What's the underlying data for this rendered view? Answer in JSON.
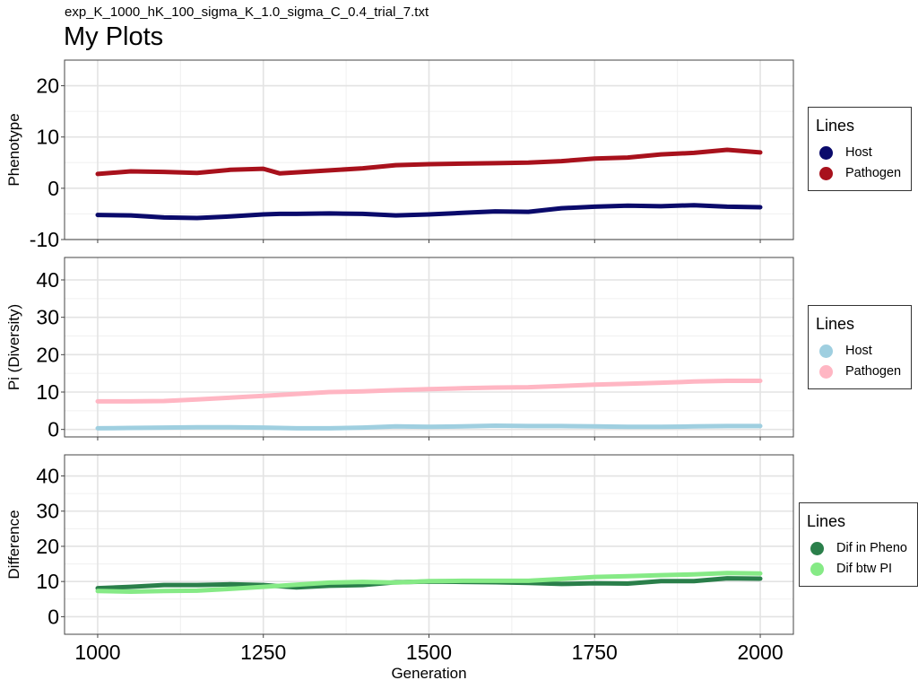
{
  "subtitle": "exp_K_1000_hK_100_sigma_K_1.0_sigma_C_0.4_trial_7.txt",
  "title": "My Plots",
  "colors": {
    "host_pheno": "#0A0A6B",
    "pathogen_pheno": "#A8111C",
    "host_pi": "#9FCFE0",
    "pathogen_pi": "#FFB6C3",
    "dif_pheno": "#2A7F4A",
    "dif_pi": "#86EA86"
  },
  "chart_data": [
    {
      "type": "line",
      "ylabel": "Phenotype",
      "xlabel": "",
      "xlim": [
        950,
        2050
      ],
      "ylim": [
        -10,
        25
      ],
      "yticks": [
        -10,
        0,
        10,
        20
      ],
      "grid": true,
      "legend": {
        "title": "Lines",
        "position": "right"
      },
      "x": [
        1000,
        1050,
        1100,
        1150,
        1200,
        1250,
        1275,
        1300,
        1350,
        1400,
        1450,
        1500,
        1550,
        1600,
        1650,
        1700,
        1750,
        1800,
        1850,
        1900,
        1950,
        2000
      ],
      "series": [
        {
          "name": "Host",
          "color": "host_pheno",
          "values": [
            -5.2,
            -5.3,
            -5.7,
            -5.8,
            -5.5,
            -5.1,
            -5.0,
            -5.0,
            -4.9,
            -5.0,
            -5.3,
            -5.1,
            -4.8,
            -4.5,
            -4.6,
            -3.9,
            -3.6,
            -3.4,
            -3.5,
            -3.3,
            -3.6,
            -3.7
          ]
        },
        {
          "name": "Pathogen",
          "color": "pathogen_pheno",
          "values": [
            2.8,
            3.3,
            3.2,
            3.0,
            3.6,
            3.8,
            2.9,
            3.1,
            3.5,
            3.9,
            4.5,
            4.7,
            4.8,
            4.9,
            5.0,
            5.3,
            5.8,
            6.0,
            6.6,
            6.9,
            7.5,
            7.0
          ]
        }
      ]
    },
    {
      "type": "line",
      "ylabel": "Pi (Diversity)",
      "xlabel": "",
      "xlim": [
        950,
        2050
      ],
      "ylim": [
        -2,
        46
      ],
      "yticks": [
        0,
        10,
        20,
        30,
        40
      ],
      "grid": true,
      "legend": {
        "title": "Lines",
        "position": "right"
      },
      "x": [
        1000,
        1050,
        1100,
        1150,
        1200,
        1250,
        1300,
        1350,
        1400,
        1450,
        1500,
        1550,
        1600,
        1650,
        1700,
        1750,
        1800,
        1850,
        1900,
        1950,
        2000
      ],
      "series": [
        {
          "name": "Host",
          "color": "host_pi",
          "values": [
            0.3,
            0.4,
            0.5,
            0.6,
            0.6,
            0.5,
            0.3,
            0.3,
            0.5,
            0.8,
            0.7,
            0.8,
            1.0,
            0.9,
            0.9,
            0.8,
            0.7,
            0.7,
            0.8,
            0.9,
            0.9
          ]
        },
        {
          "name": "Pathogen",
          "color": "pathogen_pi",
          "values": [
            7.5,
            7.5,
            7.6,
            8.0,
            8.5,
            9.0,
            9.5,
            10.0,
            10.2,
            10.5,
            10.8,
            11.0,
            11.2,
            11.3,
            11.6,
            12.0,
            12.2,
            12.5,
            12.8,
            13.0,
            13.0
          ]
        }
      ]
    },
    {
      "type": "line",
      "ylabel": "Difference",
      "xlabel": "Generation",
      "xlim": [
        950,
        2050
      ],
      "ylim": [
        -5,
        46
      ],
      "yticks": [
        0,
        10,
        20,
        30,
        40
      ],
      "xticks": [
        1000,
        1250,
        1500,
        1750,
        2000
      ],
      "grid": true,
      "legend": {
        "title": "Lines",
        "position": "right"
      },
      "x": [
        1000,
        1050,
        1100,
        1150,
        1200,
        1250,
        1300,
        1350,
        1400,
        1450,
        1500,
        1550,
        1600,
        1650,
        1700,
        1750,
        1800,
        1850,
        1900,
        1950,
        2000
      ],
      "series": [
        {
          "name": "Dif in Pheno",
          "color": "dif_pheno",
          "values": [
            8.1,
            8.5,
            9.0,
            9.0,
            9.2,
            9.0,
            8.3,
            8.8,
            9.0,
            9.8,
            10.0,
            9.9,
            9.8,
            9.6,
            9.3,
            9.5,
            9.4,
            10.1,
            10.1,
            10.9,
            10.8
          ]
        },
        {
          "name": "Dif btw PI",
          "color": "dif_pi",
          "values": [
            7.3,
            7.1,
            7.3,
            7.4,
            7.9,
            8.5,
            9.1,
            9.7,
            9.9,
            9.7,
            10.1,
            10.2,
            10.2,
            10.2,
            10.7,
            11.3,
            11.5,
            11.8,
            12.0,
            12.4,
            12.3
          ]
        }
      ]
    }
  ]
}
